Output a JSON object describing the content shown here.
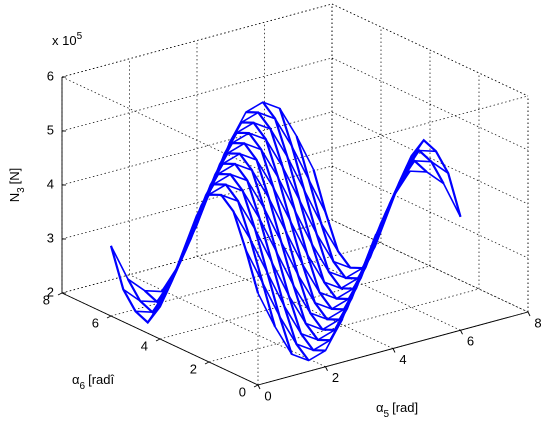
{
  "chart_data": {
    "type": "surface",
    "color": "#0000ff",
    "grid": true,
    "xlabel": {
      "symbol": "α",
      "subscript": "5",
      "unit": "[rad]"
    },
    "ylabel": {
      "symbol": "α",
      "subscript": "6",
      "unit": "[radî"
    },
    "zlabel": {
      "symbol": "N",
      "subscript": "3",
      "unit": "[N]"
    },
    "zmultiplier": {
      "base": "x 10",
      "exponent": "5"
    },
    "xlim": [
      0,
      8
    ],
    "ylim": [
      0,
      8
    ],
    "zlim": [
      2,
      6
    ],
    "xticks": [
      0,
      2,
      4,
      6,
      8
    ],
    "yticks": [
      0,
      2,
      4,
      6,
      8
    ],
    "zticks": [
      2,
      3,
      4,
      5,
      6
    ],
    "x": [
      0,
      0.5,
      1,
      1.5,
      2,
      2.5,
      3,
      3.5,
      4,
      4.5,
      5,
      5.5,
      6
    ],
    "y": [
      0,
      0.5,
      1,
      1.5,
      2,
      2.5,
      3,
      3.5,
      4,
      4.5,
      5,
      5.5,
      6
    ],
    "z": [
      [
        3.7,
        4.4,
        5.0,
        5.2,
        5.1,
        4.6,
        3.9,
        3.2,
        2.6,
        2.2,
        2.3,
        2.6,
        3.3
      ],
      [
        3.0,
        3.7,
        4.4,
        5.0,
        5.2,
        5.1,
        4.6,
        3.9,
        3.2,
        2.6,
        2.2,
        2.3,
        2.6
      ],
      [
        2.4,
        3.0,
        3.7,
        4.4,
        5.0,
        5.2,
        5.1,
        4.6,
        3.9,
        3.2,
        2.6,
        2.2,
        2.3
      ],
      [
        2.2,
        2.4,
        3.0,
        3.7,
        4.4,
        5.0,
        5.2,
        5.1,
        4.6,
        3.9,
        3.2,
        2.6,
        2.2
      ],
      [
        2.3,
        2.2,
        2.4,
        3.0,
        3.7,
        4.4,
        5.0,
        5.2,
        5.1,
        4.6,
        3.9,
        3.2,
        2.6
      ],
      [
        2.8,
        2.3,
        2.2,
        2.4,
        3.0,
        3.7,
        4.4,
        5.0,
        5.2,
        5.1,
        4.6,
        3.9,
        3.2
      ],
      [
        3.5,
        2.8,
        2.3,
        2.2,
        2.4,
        3.0,
        3.7,
        4.4,
        5.0,
        5.2,
        5.1,
        4.6,
        3.9
      ],
      [
        4.2,
        3.5,
        2.8,
        2.3,
        2.2,
        2.4,
        3.0,
        3.7,
        4.4,
        5.0,
        5.2,
        5.1,
        4.6
      ],
      [
        4.8,
        4.2,
        3.5,
        2.8,
        2.3,
        2.2,
        2.4,
        3.0,
        3.7,
        4.4,
        5.0,
        5.2,
        5.1
      ],
      [
        5.2,
        4.8,
        4.2,
        3.5,
        2.8,
        2.3,
        2.2,
        2.4,
        3.0,
        3.7,
        4.4,
        5.0,
        5.2
      ],
      [
        5.1,
        5.2,
        4.8,
        4.2,
        3.5,
        2.8,
        2.3,
        2.2,
        2.4,
        3.0,
        3.7,
        4.4,
        5.0
      ],
      [
        4.8,
        5.1,
        5.2,
        4.8,
        4.2,
        3.5,
        2.8,
        2.3,
        2.2,
        2.4,
        3.0,
        3.7,
        4.4
      ],
      [
        4.1,
        4.8,
        5.1,
        5.2,
        4.8,
        4.2,
        3.5,
        2.8,
        2.3,
        2.2,
        2.4,
        3.0,
        3.7
      ]
    ]
  }
}
